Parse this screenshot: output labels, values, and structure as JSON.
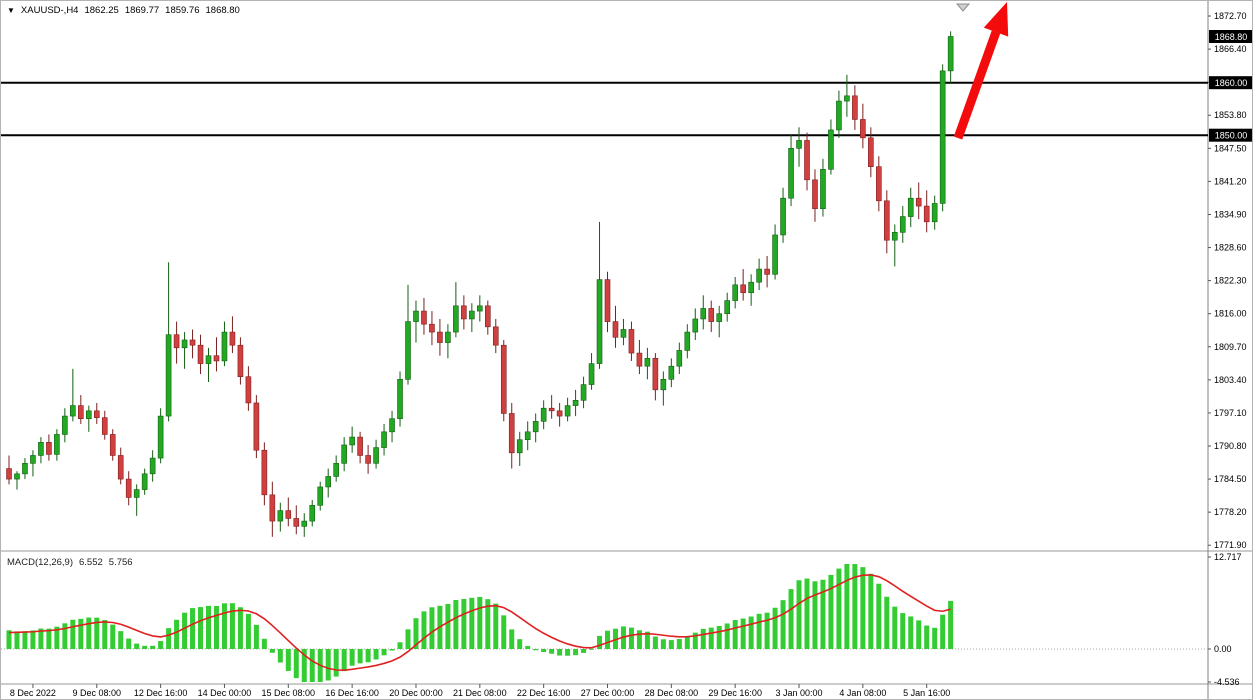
{
  "header": {
    "collapse_icon": "▼",
    "symbol_period": "XAUUSD-,H4",
    "open": "1862.25",
    "high": "1869.77",
    "low": "1859.76",
    "close": "1868.80"
  },
  "indicator_panel": {
    "label": "MACD(12,26,9)",
    "macd_value": "6.552",
    "signal_value": "5.756"
  },
  "chart_data": {
    "type": "candlestick",
    "symbol": "XAUUSD-",
    "timeframe": "H4",
    "title": "XAUUSD- H4 candlestick chart with MACD(12,26,9)",
    "price_axis_labels": [
      "1872.70",
      "1866.40",
      "1860.10",
      "1853.80",
      "1847.50",
      "1841.20",
      "1834.90",
      "1828.60",
      "1822.30",
      "1816.00",
      "1809.70",
      "1803.40",
      "1797.10",
      "1790.80",
      "1784.50",
      "1778.20",
      "1771.90"
    ],
    "price_badges": [
      {
        "text": "1868.80",
        "price": 1868.8
      },
      {
        "text": "1860.00",
        "price": 1860.0
      },
      {
        "text": "1850.00",
        "price": 1850.0
      }
    ],
    "horizontal_lines": [
      {
        "price": 1860.0,
        "label": "1860.00"
      },
      {
        "price": 1850.0,
        "label": "1850.00"
      }
    ],
    "time_axis_labels": [
      {
        "text": "8 Dec 2022",
        "bar": 3
      },
      {
        "text": "9 Dec 08:00",
        "bar": 11
      },
      {
        "text": "12 Dec 16:00",
        "bar": 19
      },
      {
        "text": "14 Dec 00:00",
        "bar": 27
      },
      {
        "text": "15 Dec 08:00",
        "bar": 35
      },
      {
        "text": "16 Dec 16:00",
        "bar": 43
      },
      {
        "text": "20 Dec 00:00",
        "bar": 51
      },
      {
        "text": "21 Dec 08:00",
        "bar": 59
      },
      {
        "text": "22 Dec 16:00",
        "bar": 67
      },
      {
        "text": "27 Dec 00:00",
        "bar": 75
      },
      {
        "text": "28 Dec 08:00",
        "bar": 83
      },
      {
        "text": "29 Dec 16:00",
        "bar": 91
      },
      {
        "text": "3 Jan 00:00",
        "bar": 99
      },
      {
        "text": "4 Jan 08:00",
        "bar": 107
      },
      {
        "text": "5 Jan 16:00",
        "bar": 115
      }
    ],
    "visible_price_range": {
      "top": 1875.6,
      "bottom": 1771.0
    },
    "indicator": {
      "name": "MACD",
      "fast": 12,
      "slow": 26,
      "signal_period": 9,
      "current_macd": "6.552",
      "current_signal": "5.756",
      "axis_labels": [
        "12.717",
        "0.00",
        "-4.536"
      ]
    },
    "colors": {
      "up": "#22a822",
      "up_border": "#145f14",
      "down": "#d04040",
      "down_border": "#7c1f1f",
      "macd_histogram": "#33cc33",
      "macd_signal": "#e02020",
      "hline": "#000000",
      "badge_bg": "#000000",
      "badge_text": "#ffffff",
      "arrow": "#f40b0b",
      "axis_line": "#808080",
      "separator": "#9a9a9a"
    },
    "candles": [
      [
        1786.5,
        1789.0,
        1783.5,
        1784.5
      ],
      [
        1784.5,
        1786.0,
        1782.5,
        1785.5
      ],
      [
        1785.5,
        1788.5,
        1784.5,
        1787.5
      ],
      [
        1787.5,
        1790.0,
        1785.0,
        1789.0
      ],
      [
        1789.0,
        1792.5,
        1787.5,
        1791.5
      ],
      [
        1791.5,
        1793.0,
        1788.0,
        1789.2
      ],
      [
        1789.2,
        1794.0,
        1788.0,
        1793.0
      ],
      [
        1793.0,
        1798.0,
        1791.5,
        1796.5
      ],
      [
        1796.5,
        1805.5,
        1795.5,
        1798.5
      ],
      [
        1798.5,
        1800.5,
        1795.0,
        1796.0
      ],
      [
        1796.0,
        1798.5,
        1793.5,
        1797.5
      ],
      [
        1797.5,
        1799.0,
        1795.0,
        1796.2
      ],
      [
        1796.2,
        1797.5,
        1792.0,
        1793.0
      ],
      [
        1793.0,
        1794.0,
        1788.0,
        1789.0
      ],
      [
        1789.0,
        1790.5,
        1783.5,
        1784.5
      ],
      [
        1784.5,
        1786.0,
        1779.5,
        1781.0
      ],
      [
        1781.0,
        1783.5,
        1777.5,
        1782.5
      ],
      [
        1782.5,
        1786.5,
        1781.5,
        1785.5
      ],
      [
        1785.5,
        1790.0,
        1784.0,
        1788.5
      ],
      [
        1788.5,
        1798.0,
        1787.5,
        1796.5
      ],
      [
        1796.5,
        1825.8,
        1795.5,
        1812.0
      ],
      [
        1812.0,
        1814.5,
        1806.5,
        1809.5
      ],
      [
        1809.5,
        1812.5,
        1805.5,
        1811.0
      ],
      [
        1811.0,
        1813.0,
        1807.5,
        1810.0
      ],
      [
        1810.0,
        1812.0,
        1804.5,
        1806.5
      ],
      [
        1806.5,
        1809.5,
        1803.0,
        1808.0
      ],
      [
        1808.0,
        1811.5,
        1805.0,
        1807.0
      ],
      [
        1807.0,
        1814.5,
        1806.0,
        1812.5
      ],
      [
        1812.5,
        1815.5,
        1808.5,
        1810.0
      ],
      [
        1810.0,
        1811.5,
        1802.5,
        1804.0
      ],
      [
        1804.0,
        1806.0,
        1797.5,
        1799.0
      ],
      [
        1799.0,
        1800.5,
        1788.5,
        1790.0
      ],
      [
        1790.0,
        1791.5,
        1779.5,
        1781.5
      ],
      [
        1781.5,
        1784.0,
        1773.5,
        1776.5
      ],
      [
        1776.5,
        1780.0,
        1774.5,
        1778.5
      ],
      [
        1778.5,
        1781.0,
        1775.5,
        1777.0
      ],
      [
        1777.0,
        1779.5,
        1774.0,
        1775.5
      ],
      [
        1775.5,
        1778.0,
        1773.5,
        1776.5
      ],
      [
        1776.5,
        1780.5,
        1775.5,
        1779.5
      ],
      [
        1779.5,
        1784.0,
        1778.5,
        1783.0
      ],
      [
        1783.0,
        1786.5,
        1781.0,
        1785.0
      ],
      [
        1785.0,
        1789.0,
        1784.0,
        1787.5
      ],
      [
        1787.5,
        1792.5,
        1786.0,
        1791.0
      ],
      [
        1791.0,
        1794.5,
        1789.5,
        1792.5
      ],
      [
        1792.5,
        1793.5,
        1787.5,
        1789.0
      ],
      [
        1789.0,
        1791.0,
        1785.5,
        1787.5
      ],
      [
        1787.5,
        1792.0,
        1786.5,
        1790.5
      ],
      [
        1790.5,
        1795.0,
        1789.0,
        1793.5
      ],
      [
        1793.5,
        1797.5,
        1791.5,
        1796.0
      ],
      [
        1796.0,
        1805.0,
        1794.5,
        1803.5
      ],
      [
        1803.5,
        1821.5,
        1802.5,
        1814.5
      ],
      [
        1814.5,
        1818.5,
        1810.5,
        1816.5
      ],
      [
        1816.5,
        1819.0,
        1812.0,
        1814.0
      ],
      [
        1814.0,
        1816.5,
        1810.0,
        1812.5
      ],
      [
        1812.5,
        1815.0,
        1808.0,
        1810.5
      ],
      [
        1810.5,
        1814.0,
        1807.5,
        1812.5
      ],
      [
        1812.5,
        1822.0,
        1811.5,
        1817.5
      ],
      [
        1817.5,
        1819.5,
        1813.0,
        1815.0
      ],
      [
        1815.0,
        1818.0,
        1812.5,
        1816.5
      ],
      [
        1816.5,
        1819.5,
        1814.5,
        1817.5
      ],
      [
        1817.5,
        1818.5,
        1812.0,
        1813.5
      ],
      [
        1813.5,
        1815.0,
        1808.5,
        1810.0
      ],
      [
        1810.0,
        1811.0,
        1795.5,
        1797.0
      ],
      [
        1797.0,
        1799.0,
        1786.5,
        1789.5
      ],
      [
        1789.5,
        1793.5,
        1787.0,
        1792.0
      ],
      [
        1792.0,
        1795.5,
        1790.0,
        1793.5
      ],
      [
        1793.5,
        1797.0,
        1791.5,
        1795.5
      ],
      [
        1795.5,
        1799.5,
        1794.0,
        1798.0
      ],
      [
        1798.0,
        1800.5,
        1796.0,
        1797.5
      ],
      [
        1797.5,
        1799.0,
        1794.5,
        1796.5
      ],
      [
        1796.5,
        1800.0,
        1795.5,
        1798.5
      ],
      [
        1798.5,
        1801.5,
        1796.5,
        1799.5
      ],
      [
        1799.5,
        1804.0,
        1798.0,
        1802.5
      ],
      [
        1802.5,
        1808.5,
        1801.5,
        1806.5
      ],
      [
        1806.5,
        1833.5,
        1805.5,
        1822.5
      ],
      [
        1822.5,
        1824.0,
        1812.5,
        1814.5
      ],
      [
        1814.5,
        1817.5,
        1809.5,
        1811.5
      ],
      [
        1811.5,
        1815.0,
        1810.0,
        1813.0
      ],
      [
        1813.0,
        1814.5,
        1807.0,
        1808.5
      ],
      [
        1808.5,
        1811.0,
        1804.5,
        1806.0
      ],
      [
        1806.0,
        1809.5,
        1803.5,
        1807.5
      ],
      [
        1807.5,
        1808.5,
        1799.5,
        1801.5
      ],
      [
        1801.5,
        1805.0,
        1798.5,
        1803.5
      ],
      [
        1803.5,
        1807.5,
        1802.0,
        1806.0
      ],
      [
        1806.0,
        1810.5,
        1804.5,
        1809.0
      ],
      [
        1809.0,
        1814.0,
        1807.5,
        1812.5
      ],
      [
        1812.5,
        1817.0,
        1811.0,
        1815.0
      ],
      [
        1815.0,
        1819.5,
        1813.0,
        1817.0
      ],
      [
        1817.0,
        1818.5,
        1812.5,
        1814.5
      ],
      [
        1814.5,
        1817.5,
        1811.5,
        1816.0
      ],
      [
        1816.0,
        1820.0,
        1814.5,
        1818.5
      ],
      [
        1818.5,
        1823.0,
        1817.0,
        1821.5
      ],
      [
        1821.5,
        1824.5,
        1818.5,
        1820.0
      ],
      [
        1820.0,
        1823.5,
        1817.5,
        1822.0
      ],
      [
        1822.0,
        1826.5,
        1820.5,
        1824.5
      ],
      [
        1824.5,
        1827.0,
        1821.0,
        1823.5
      ],
      [
        1823.5,
        1833.0,
        1822.5,
        1831.0
      ],
      [
        1831.0,
        1840.0,
        1829.5,
        1838.0
      ],
      [
        1838.0,
        1850.0,
        1836.5,
        1847.5
      ],
      [
        1847.5,
        1851.5,
        1844.0,
        1849.0
      ],
      [
        1849.0,
        1850.5,
        1839.5,
        1841.5
      ],
      [
        1841.5,
        1843.5,
        1833.5,
        1836.0
      ],
      [
        1836.0,
        1845.5,
        1834.5,
        1843.5
      ],
      [
        1843.5,
        1853.0,
        1842.5,
        1851.0
      ],
      [
        1851.0,
        1858.5,
        1849.5,
        1856.5
      ],
      [
        1856.5,
        1861.5,
        1853.5,
        1857.5
      ],
      [
        1857.5,
        1859.5,
        1851.0,
        1853.0
      ],
      [
        1853.0,
        1856.0,
        1847.5,
        1849.5
      ],
      [
        1849.5,
        1851.5,
        1842.0,
        1844.0
      ],
      [
        1844.0,
        1846.0,
        1835.5,
        1837.5
      ],
      [
        1837.5,
        1839.5,
        1827.5,
        1830.0
      ],
      [
        1830.0,
        1833.0,
        1825.0,
        1831.5
      ],
      [
        1831.5,
        1836.5,
        1829.5,
        1834.5
      ],
      [
        1834.5,
        1840.0,
        1832.5,
        1838.0
      ],
      [
        1838.0,
        1841.0,
        1834.0,
        1836.5
      ],
      [
        1836.5,
        1839.5,
        1831.5,
        1833.5
      ],
      [
        1833.5,
        1838.5,
        1832.0,
        1837.0
      ],
      [
        1837.0,
        1863.5,
        1835.5,
        1862.25
      ],
      [
        1862.25,
        1869.77,
        1859.76,
        1868.8
      ]
    ]
  },
  "annotations": {
    "trend_arrow": {
      "direction": "up",
      "color": "#f40b0b"
    },
    "chart_shift_marker": {
      "shape": "triangle-down",
      "color": "#cfcfcf"
    }
  }
}
